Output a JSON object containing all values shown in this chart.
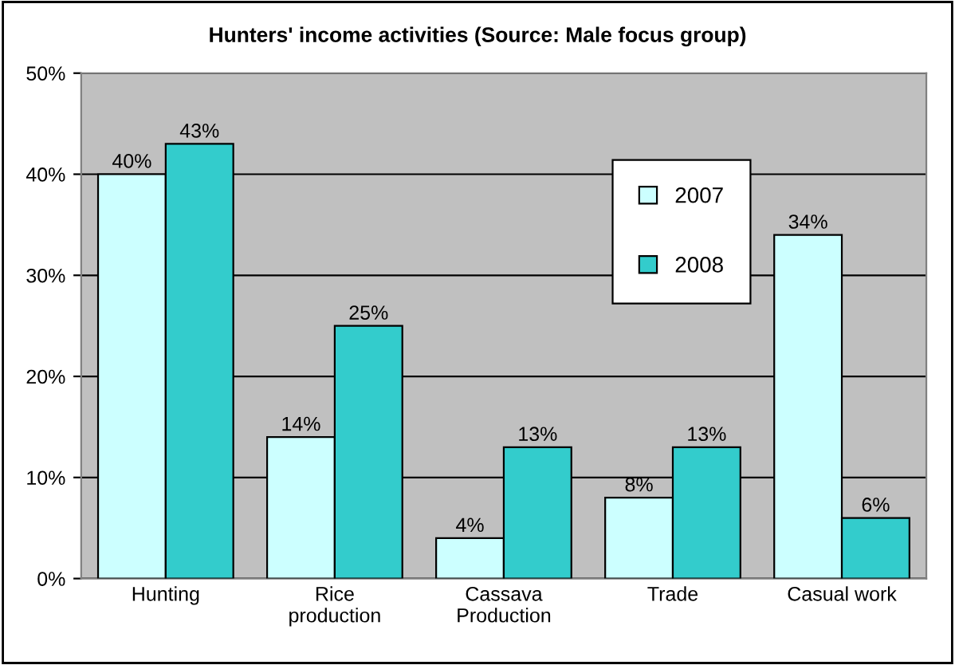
{
  "chart_data": {
    "type": "bar",
    "title": "Hunters' income activities (Source: Male focus group)",
    "categories": [
      "Hunting",
      "Rice\nproduction",
      "Cassava\nProduction",
      "Trade",
      "Casual work"
    ],
    "series": [
      {
        "name": "2007",
        "color": "#ccffff",
        "values": [
          40,
          14,
          4,
          8,
          34
        ],
        "value_labels": [
          "40%",
          "14%",
          "4%",
          "8%",
          "34%"
        ]
      },
      {
        "name": "2008",
        "color": "#33cccc",
        "values": [
          43,
          25,
          13,
          13,
          6
        ],
        "value_labels": [
          "43%",
          "25%",
          "13%",
          "13%",
          "6%"
        ]
      }
    ],
    "ylim": [
      0,
      50
    ],
    "yticks": [
      {
        "value": 0,
        "label": "0%"
      },
      {
        "value": 10,
        "label": "10%"
      },
      {
        "value": 20,
        "label": "20%"
      },
      {
        "value": 30,
        "label": "30%"
      },
      {
        "value": 40,
        "label": "40%"
      },
      {
        "value": 50,
        "label": "50%"
      }
    ],
    "grid": "y",
    "legend": "top right"
  }
}
